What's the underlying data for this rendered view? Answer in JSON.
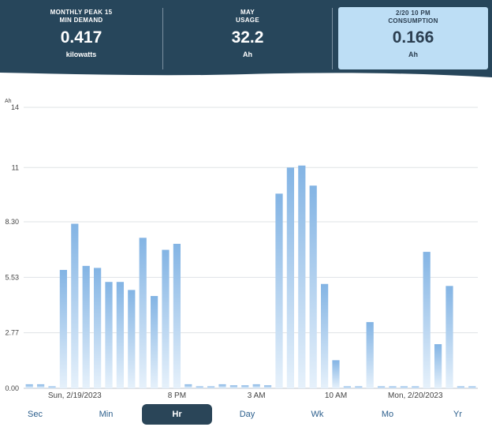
{
  "header": {
    "stats": [
      {
        "label_line1": "MONTHLY PEAK 15",
        "label_line2": "MIN DEMAND",
        "value": "0.417",
        "unit": "kilowatts"
      },
      {
        "label_line1": "MAY",
        "label_line2": "USAGE",
        "value": "32.2",
        "unit": "Ah"
      },
      {
        "label_line1": "2/20 10 PM",
        "label_line2": "CONSUMPTION",
        "value": "0.166",
        "unit": "Ah"
      }
    ],
    "colors": {
      "background": "#27465b",
      "selected_card": "#bddef5"
    }
  },
  "chart_data": {
    "type": "bar",
    "ylabel": "Ah",
    "ylim": [
      0,
      14
    ],
    "y_ticks": [
      "14",
      "11",
      "8.30",
      "5.53",
      "2.77",
      "0.00"
    ],
    "y_tick_values": [
      14,
      11,
      8.3,
      5.53,
      2.77,
      0
    ],
    "x_tick_labels": [
      {
        "label": "Sun, 2/19/2023",
        "index": 4
      },
      {
        "label": "8 PM",
        "index": 13
      },
      {
        "label": "3 AM",
        "index": 20
      },
      {
        "label": "10 AM",
        "index": 27
      },
      {
        "label": "Mon, 2/20/2023",
        "index": 34
      }
    ],
    "values": [
      0.2,
      0.2,
      0.1,
      5.9,
      8.2,
      6.1,
      6.0,
      5.3,
      5.3,
      4.9,
      7.5,
      4.6,
      6.9,
      7.2,
      0.2,
      0.1,
      0.1,
      0.2,
      0.15,
      0.15,
      0.2,
      0.15,
      9.7,
      11.0,
      11.1,
      10.1,
      5.2,
      1.4,
      0.1,
      0.1,
      3.3,
      0.1,
      0.1,
      0.1,
      0.1,
      6.8,
      2.2,
      5.1,
      0.1,
      0.1
    ],
    "grid": true,
    "bar_color": "#8ab8e6"
  },
  "tabs": [
    "Sec",
    "Min",
    "Hr",
    "Day",
    "Wk",
    "Mo",
    "Yr"
  ],
  "active_tab": "Hr"
}
